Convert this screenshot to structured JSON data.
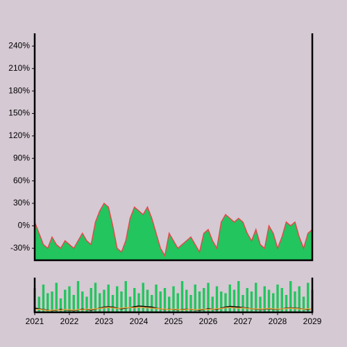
{
  "chart_data": {
    "type": "area",
    "x": [
      2021,
      2021.125,
      2021.25,
      2021.375,
      2021.5,
      2021.625,
      2021.75,
      2021.875,
      2022,
      2022.125,
      2022.25,
      2022.375,
      2022.5,
      2022.625,
      2022.75,
      2022.875,
      2023,
      2023.125,
      2023.25,
      2023.375,
      2023.5,
      2023.625,
      2023.75,
      2023.875,
      2024,
      2024.125,
      2024.25,
      2024.375,
      2024.5,
      2024.625,
      2024.75,
      2024.875,
      2025,
      2025.125,
      2025.25,
      2025.375,
      2025.5,
      2025.625,
      2025.75,
      2025.875,
      2026,
      2026.125,
      2026.25,
      2026.375,
      2026.5,
      2026.625,
      2026.75,
      2026.875,
      2027,
      2027.125,
      2027.25,
      2027.375,
      2027.5,
      2027.625,
      2027.75,
      2027.875,
      2028,
      2028.125,
      2028.25,
      2028.375,
      2028.5,
      2028.625,
      2028.75,
      2028.875,
      2029
    ],
    "series": [
      {
        "color": "#22c55e",
        "line_color": "#e5484d",
        "values": [
          5,
          -10,
          -25,
          -30,
          -15,
          -25,
          -30,
          -20,
          -25,
          -30,
          -20,
          -10,
          -20,
          -25,
          5,
          20,
          30,
          25,
          0,
          -30,
          -35,
          -20,
          10,
          25,
          20,
          15,
          25,
          10,
          -10,
          -30,
          -40,
          -10,
          -20,
          -30,
          -25,
          -20,
          -15,
          -25,
          -35,
          -10,
          -5,
          -20,
          -30,
          5,
          15,
          10,
          5,
          10,
          5,
          -10,
          -20,
          -5,
          -25,
          -30,
          0,
          -10,
          -30,
          -15,
          5,
          0,
          5,
          -15,
          -30,
          -10,
          -5
        ]
      }
    ],
    "ylim": [
      -46,
      257
    ],
    "yticks": [
      {
        "value": -30,
        "label": "-30%"
      },
      {
        "value": 0,
        "label": "0%"
      },
      {
        "value": 30,
        "label": "30%"
      },
      {
        "value": 60,
        "label": "60%"
      },
      {
        "value": 90,
        "label": "90%"
      },
      {
        "value": 120,
        "label": "120%"
      },
      {
        "value": 150,
        "label": "150%"
      },
      {
        "value": 180,
        "label": "180%"
      },
      {
        "value": 210,
        "label": "210%"
      },
      {
        "value": 240,
        "label": "240%"
      }
    ],
    "xlim": [
      2021,
      2029
    ],
    "xticks": [
      2021,
      2022,
      2023,
      2024,
      2025,
      2026,
      2027,
      2028,
      2029
    ],
    "volume": {
      "color": "#22c55e",
      "ylim": [
        0,
        100
      ],
      "values": [
        70,
        45,
        80,
        55,
        60,
        85,
        40,
        65,
        75,
        50,
        90,
        60,
        45,
        70,
        85,
        55,
        65,
        80,
        50,
        75,
        60,
        90,
        45,
        70,
        55,
        85,
        65,
        50,
        80,
        60,
        70,
        45,
        75,
        55,
        90,
        65,
        50,
        80,
        60,
        70,
        85,
        45,
        75,
        60,
        55,
        80,
        65,
        90,
        50,
        70,
        60,
        85,
        45,
        75,
        65,
        55,
        80,
        70,
        50,
        90,
        60,
        75,
        45,
        85,
        65
      ],
      "lines": [
        {
          "color": "#000000",
          "values": [
            12,
            10,
            8,
            6,
            5,
            6,
            8,
            7,
            6,
            5,
            7,
            9,
            8,
            6,
            9,
            12,
            15,
            16,
            15,
            12,
            10,
            12,
            14,
            16,
            18,
            17,
            16,
            15,
            12,
            10,
            8,
            9,
            8,
            7,
            8,
            9,
            8,
            7,
            6,
            8,
            10,
            9,
            8,
            12,
            15,
            17,
            16,
            15,
            14,
            12,
            10,
            9,
            8,
            9,
            10,
            9,
            8,
            10,
            12,
            13,
            12,
            11,
            9,
            8,
            10
          ]
        },
        {
          "color": "#e8a33c",
          "values": [
            8,
            9,
            7,
            5,
            6,
            7,
            6,
            8,
            7,
            6,
            8,
            7,
            9,
            8,
            10,
            11,
            13,
            14,
            13,
            11,
            12,
            13,
            14,
            13,
            15,
            14,
            13,
            12,
            11,
            10,
            9,
            8,
            9,
            8,
            7,
            8,
            9,
            7,
            8,
            9,
            8,
            9,
            10,
            11,
            13,
            14,
            13,
            12,
            13,
            11,
            10,
            10,
            9,
            10,
            11,
            10,
            9,
            10,
            11,
            12,
            11,
            10,
            9,
            10,
            9
          ]
        }
      ]
    }
  }
}
